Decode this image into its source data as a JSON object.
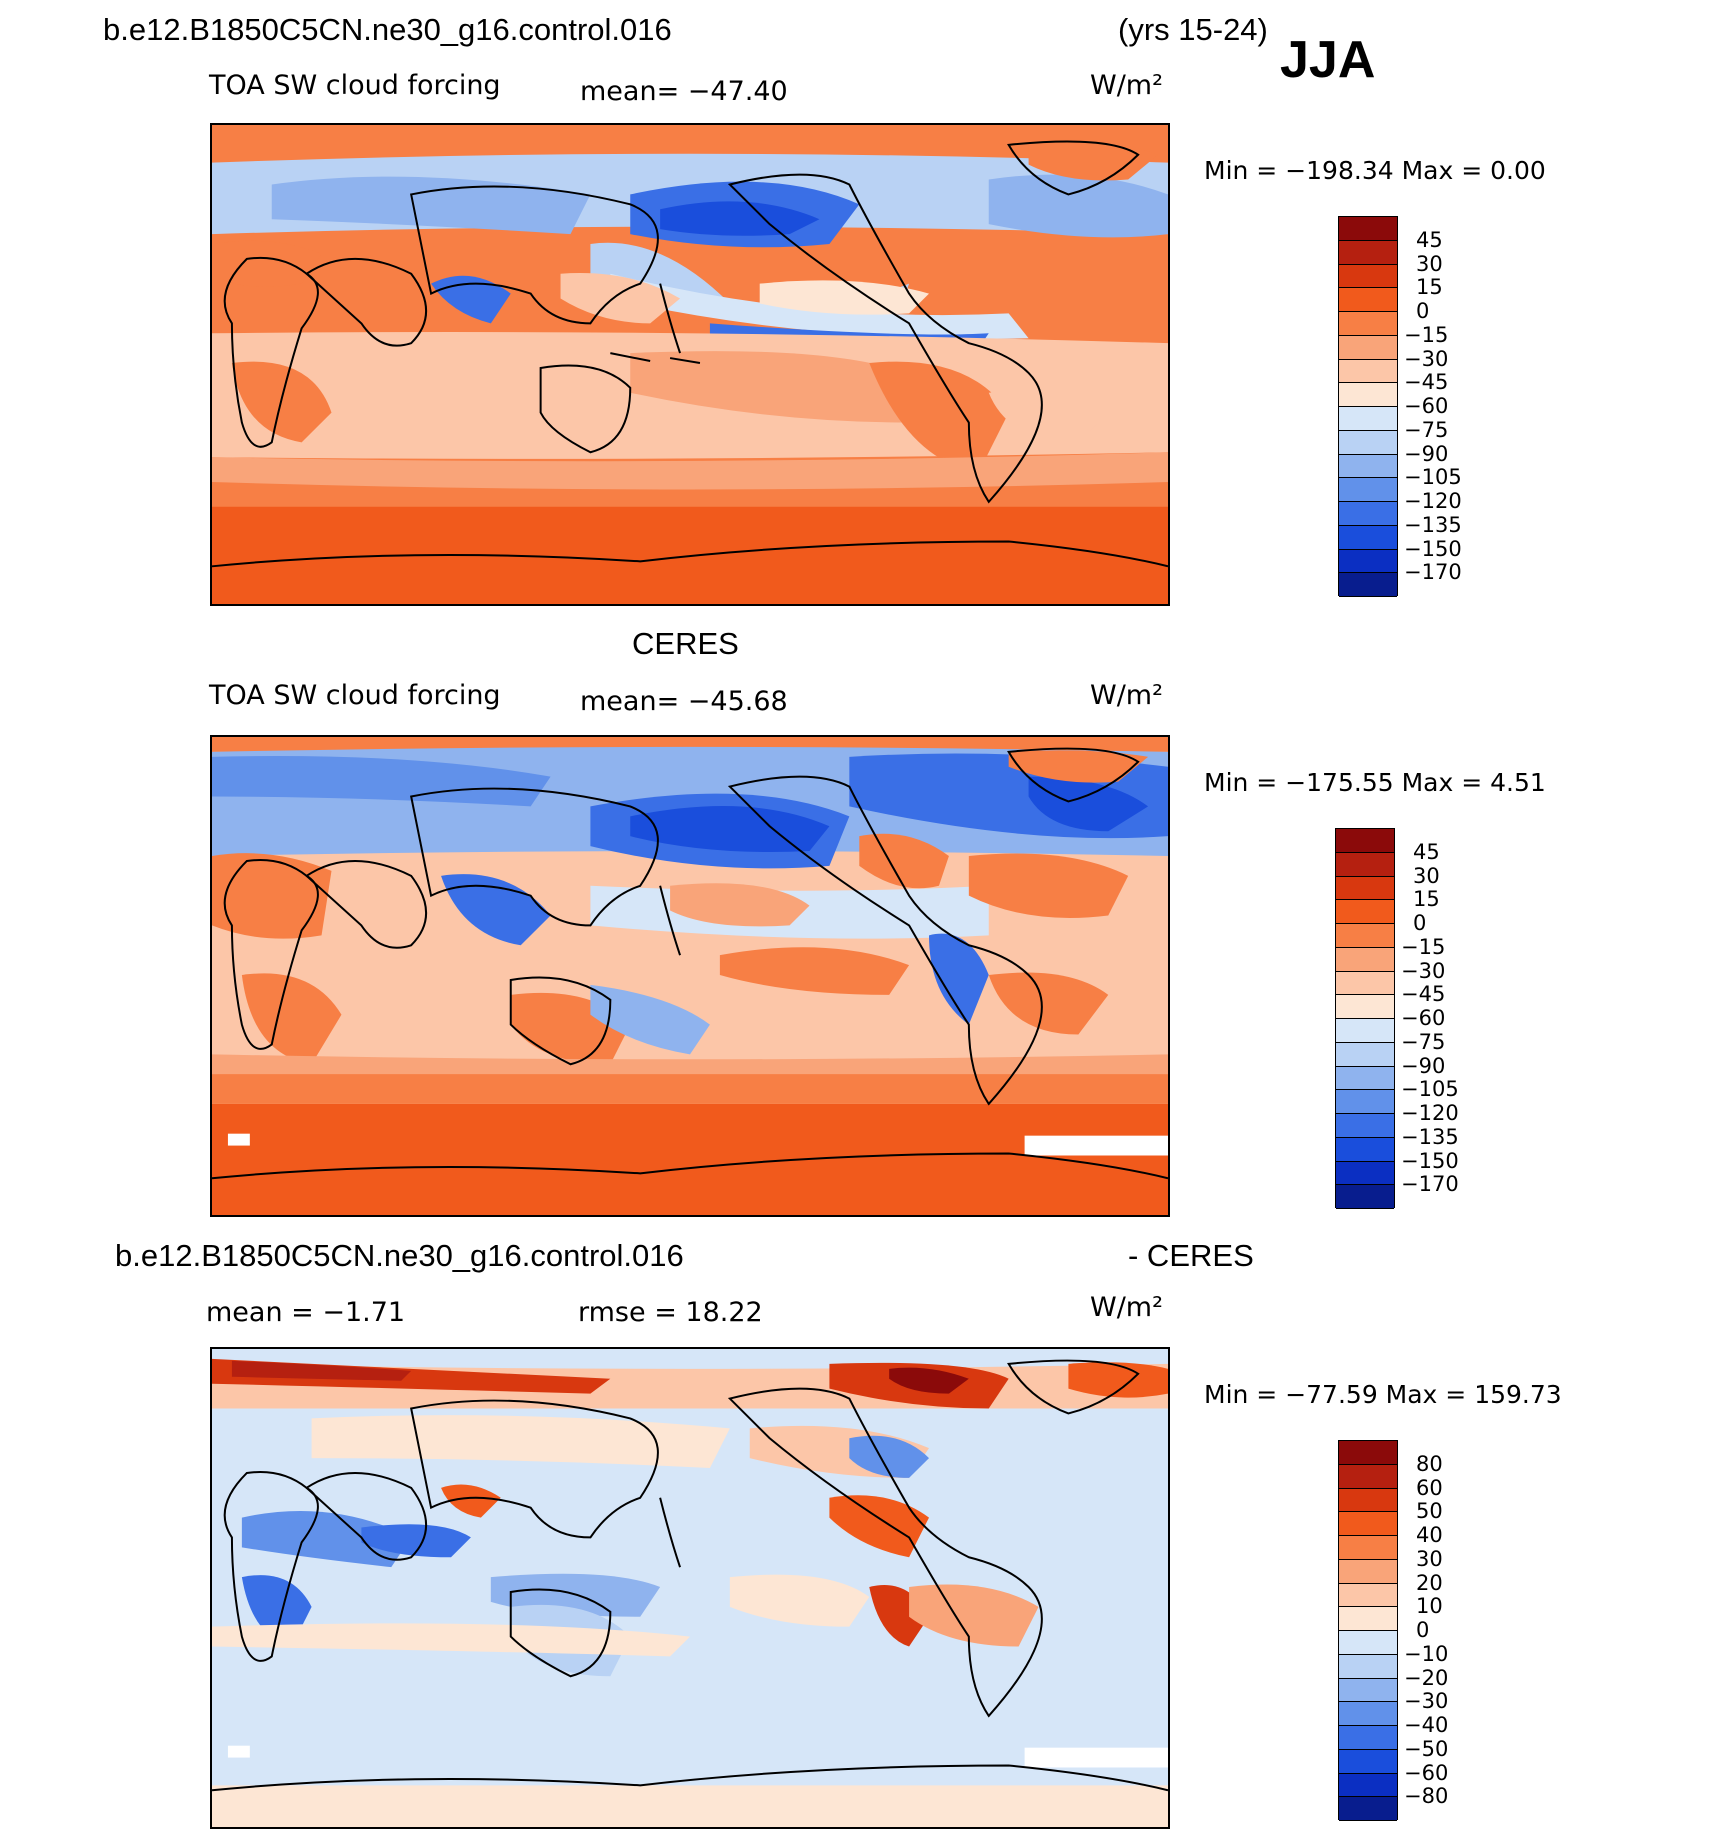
{
  "header": {
    "case_name": "b.e12.B1850C5CN.ne30_g16.control.016",
    "years": "(yrs 15-24)",
    "season": "JJA"
  },
  "panels": [
    {
      "heading": "",
      "variable": "TOA SW cloud forcing",
      "stat_text": "mean= −47.40",
      "units": "W/m²",
      "minmax": "Min  =  −198.34  Max  =     0.00",
      "colorbar_labels": [
        "45",
        "30",
        "15",
        "0",
        "−15",
        "−30",
        "−45",
        "−60",
        "−75",
        "−90",
        "−105",
        "−120",
        "−135",
        "−150",
        "−170"
      ],
      "colorbar_colors": [
        "#8b0a0a",
        "#b52010",
        "#d8380f",
        "#f15a1c",
        "#f77f45",
        "#f9a479",
        "#fcc6a8",
        "#fde6d4",
        "#d6e6f8",
        "#b9d2f4",
        "#8fb3ee",
        "#6191ea",
        "#3a6fe6",
        "#1a4edc",
        "#0b2fc2",
        "#081d8e"
      ]
    },
    {
      "heading": "CERES",
      "variable": "TOA SW cloud forcing",
      "stat_text": "mean= −45.68",
      "units": "W/m²",
      "minmax": "Min  =  −175.55  Max  =     4.51",
      "colorbar_labels": [
        "45",
        "30",
        "15",
        "0",
        "−15",
        "−30",
        "−45",
        "−60",
        "−75",
        "−90",
        "−105",
        "−120",
        "−135",
        "−150",
        "−170"
      ],
      "colorbar_colors": [
        "#8b0a0a",
        "#b52010",
        "#d8380f",
        "#f15a1c",
        "#f77f45",
        "#f9a479",
        "#fcc6a8",
        "#fde6d4",
        "#d6e6f8",
        "#b9d2f4",
        "#8fb3ee",
        "#6191ea",
        "#3a6fe6",
        "#1a4edc",
        "#0b2fc2",
        "#081d8e"
      ]
    },
    {
      "heading_left": "b.e12.B1850C5CN.ne30_g16.control.016",
      "heading_right": "- CERES",
      "mean_text": "mean  =   −1.71",
      "rmse_text": "rmse  =   18.22",
      "units": "W/m²",
      "minmax": "Min  =  −77.59  Max  =  159.73",
      "colorbar_labels": [
        "80",
        "60",
        "50",
        "40",
        "30",
        "20",
        "10",
        "0",
        "−10",
        "−20",
        "−30",
        "−40",
        "−50",
        "−60",
        "−80"
      ],
      "colorbar_colors": [
        "#8b0a0a",
        "#b52010",
        "#d8380f",
        "#f15a1c",
        "#f77f45",
        "#f9a479",
        "#fcc6a8",
        "#fde6d4",
        "#d6e6f8",
        "#b9d2f4",
        "#8fb3ee",
        "#6191ea",
        "#3a6fe6",
        "#1a4edc",
        "#0b2fc2",
        "#081d8e"
      ]
    }
  ]
}
